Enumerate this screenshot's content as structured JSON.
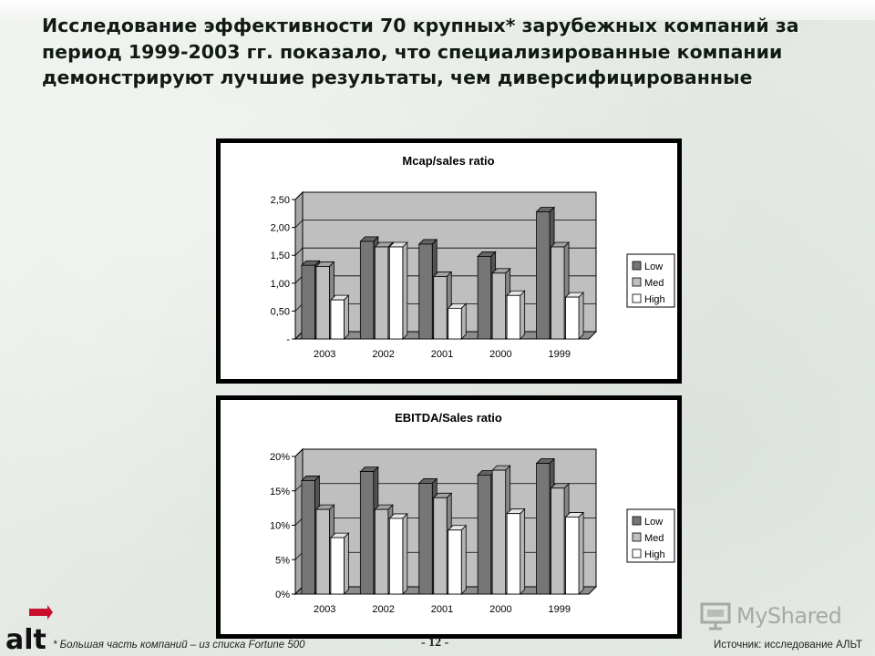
{
  "headline": "Исследование эффективности 70 крупных* зарубежных компаний за период 1999-2003 гг. показало, что специализированные компании демонстрируют лучшие результаты, чем диверсифицированные",
  "footnote": "* Большая часть компаний – из списка Fortune 500",
  "page_number": "- 12 -",
  "source": "Источник: исследование АЛЬТ",
  "logo": {
    "text": "alt",
    "icon": "alt-logo-icon"
  },
  "watermark": {
    "text": "MyShared",
    "icon": "presentation-screen-icon"
  },
  "colors": {
    "low": "#767676",
    "med": "#bfbfbf",
    "high": "#ffffff",
    "plot_bg": "#bfbfbf"
  },
  "chart_data": [
    {
      "type": "bar",
      "title": "Mcap/sales ratio",
      "categories": [
        "2003",
        "2002",
        "2001",
        "2000",
        "1999"
      ],
      "series": [
        {
          "name": "Low",
          "values": [
            1.32,
            1.75,
            1.7,
            1.48,
            2.28
          ]
        },
        {
          "name": "Med",
          "values": [
            1.3,
            1.65,
            1.12,
            1.18,
            1.65
          ]
        },
        {
          "name": "High",
          "values": [
            0.7,
            1.65,
            0.55,
            0.78,
            0.75
          ]
        }
      ],
      "ylim": [
        0,
        2.5
      ],
      "yticks": [
        0,
        0.5,
        1.0,
        1.5,
        2.0,
        2.5
      ],
      "ytick_labels": [
        "-",
        "0,50",
        "1,00",
        "1,50",
        "2,00",
        "2,50"
      ],
      "legend": "right",
      "grid": true
    },
    {
      "type": "bar",
      "title": "EBITDA/Sales ratio",
      "categories": [
        "2003",
        "2002",
        "2001",
        "2000",
        "1999"
      ],
      "series": [
        {
          "name": "Low",
          "values": [
            16.5,
            17.8,
            16.1,
            17.3,
            19.0
          ]
        },
        {
          "name": "Med",
          "values": [
            12.3,
            12.3,
            14.0,
            18.0,
            15.4
          ]
        },
        {
          "name": "High",
          "values": [
            8.2,
            11.0,
            9.3,
            11.7,
            11.2
          ]
        }
      ],
      "ylim": [
        0,
        20
      ],
      "yticks": [
        0,
        5,
        10,
        15,
        20
      ],
      "ytick_labels": [
        "0%",
        "5%",
        "10%",
        "15%",
        "20%"
      ],
      "legend": "right",
      "grid": true
    }
  ]
}
